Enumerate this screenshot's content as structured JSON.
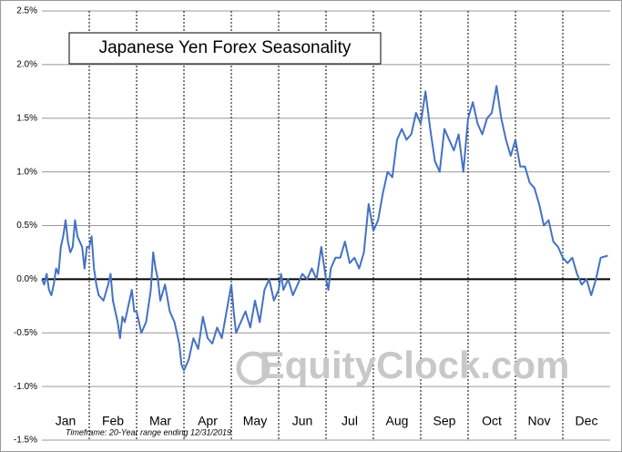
{
  "chart_data": {
    "type": "line",
    "title": "Japanese Yen Forex Seasonality",
    "annotations": [
      "Timeframe: 20-Year range ending 12/31/2019",
      "EquityClock.com"
    ],
    "categories": [
      "Jan",
      "Feb",
      "Mar",
      "Apr",
      "May",
      "Jun",
      "Jul",
      "Aug",
      "Sep",
      "Oct",
      "Nov",
      "Dec"
    ],
    "xlim": [
      0,
      12
    ],
    "ylim": [
      -1.5,
      2.5
    ],
    "yticks": [
      {
        "value": -1.5,
        "label": "-1.5%"
      },
      {
        "value": -1,
        "label": "-1.0%"
      },
      {
        "value": -0.5,
        "label": "-0.5%"
      },
      {
        "value": 0,
        "label": "0.0%"
      },
      {
        "value": 0.5,
        "label": "0.5%"
      },
      {
        "value": 1,
        "label": "1.0%"
      },
      {
        "value": 1.5,
        "label": "1.5%"
      },
      {
        "value": 2,
        "label": "2.0%"
      },
      {
        "value": 2.5,
        "label": "2.5%"
      }
    ],
    "grid": true,
    "series": [
      {
        "color": "#4472c4",
        "x": [
          0,
          0.05,
          0.1,
          0.15,
          0.2,
          0.25,
          0.3,
          0.35,
          0.4,
          0.45,
          0.5,
          0.55,
          0.6,
          0.65,
          0.7,
          0.75,
          0.8,
          0.85,
          0.9,
          0.95,
          1.0,
          1.05,
          1.1,
          1.15,
          1.2,
          1.3,
          1.4,
          1.45,
          1.5,
          1.6,
          1.65,
          1.7,
          1.75,
          1.8,
          1.9,
          1.95,
          2.0,
          2.1,
          2.2,
          2.3,
          2.35,
          2.4,
          2.45,
          2.5,
          2.6,
          2.7,
          2.8,
          2.9,
          2.95,
          3.0,
          3.1,
          3.2,
          3.3,
          3.4,
          3.5,
          3.6,
          3.7,
          3.8,
          3.9,
          4.0,
          4.05,
          4.1,
          4.2,
          4.3,
          4.4,
          4.5,
          4.6,
          4.7,
          4.8,
          4.9,
          5.0,
          5.05,
          5.1,
          5.2,
          5.3,
          5.4,
          5.5,
          5.6,
          5.7,
          5.8,
          5.9,
          6.0,
          6.05,
          6.1,
          6.2,
          6.3,
          6.4,
          6.5,
          6.6,
          6.7,
          6.8,
          6.9,
          7.0,
          7.1,
          7.2,
          7.3,
          7.4,
          7.5,
          7.6,
          7.7,
          7.8,
          7.9,
          8.0,
          8.1,
          8.2,
          8.3,
          8.4,
          8.5,
          8.6,
          8.7,
          8.8,
          8.9,
          9.0,
          9.1,
          9.2,
          9.3,
          9.4,
          9.5,
          9.6,
          9.7,
          9.8,
          9.9,
          10.0,
          10.1,
          10.2,
          10.3,
          10.4,
          10.5,
          10.6,
          10.7,
          10.8,
          10.9,
          11.0,
          11.1,
          11.2,
          11.3,
          11.4,
          11.5,
          11.6,
          11.7,
          11.8,
          11.95
        ],
        "values": [
          0,
          -0.05,
          0.05,
          -0.1,
          -0.15,
          -0.05,
          0.1,
          0.05,
          0.3,
          0.4,
          0.55,
          0.35,
          0.25,
          0.3,
          0.55,
          0.4,
          0.35,
          0.3,
          0.1,
          0.3,
          0.3,
          0.4,
          0.1,
          -0.05,
          -0.15,
          -0.2,
          -0.05,
          0.05,
          -0.2,
          -0.4,
          -0.55,
          -0.35,
          -0.4,
          -0.3,
          -0.1,
          -0.3,
          -0.3,
          -0.5,
          -0.4,
          -0.1,
          0.25,
          0.1,
          0,
          -0.2,
          -0.05,
          -0.3,
          -0.4,
          -0.6,
          -0.8,
          -0.85,
          -0.75,
          -0.55,
          -0.65,
          -0.35,
          -0.55,
          -0.6,
          -0.45,
          -0.55,
          -0.3,
          -0.05,
          -0.3,
          -0.5,
          -0.4,
          -0.3,
          -0.45,
          -0.2,
          -0.4,
          -0.1,
          0,
          -0.2,
          -0.1,
          0.05,
          -0.1,
          0,
          -0.15,
          -0.05,
          0.05,
          0,
          0.1,
          0,
          0.3,
          0,
          -0.1,
          0.1,
          0.2,
          0.2,
          0.35,
          0.15,
          0.2,
          0.1,
          0.25,
          0.7,
          0.45,
          0.55,
          0.8,
          1.0,
          0.95,
          1.3,
          1.4,
          1.3,
          1.35,
          1.55,
          1.45,
          1.75,
          1.4,
          1.1,
          1.0,
          1.4,
          1.3,
          1.2,
          1.35,
          1.0,
          1.5,
          1.65,
          1.45,
          1.35,
          1.5,
          1.55,
          1.8,
          1.5,
          1.3,
          1.15,
          1.3,
          1.05,
          1.05,
          0.9,
          0.85,
          0.7,
          0.5,
          0.55,
          0.35,
          0.3,
          0.2,
          0.15,
          0.2,
          0.05,
          -0.05,
          0,
          -0.15,
          0,
          0.2,
          0.22
        ]
      }
    ]
  }
}
